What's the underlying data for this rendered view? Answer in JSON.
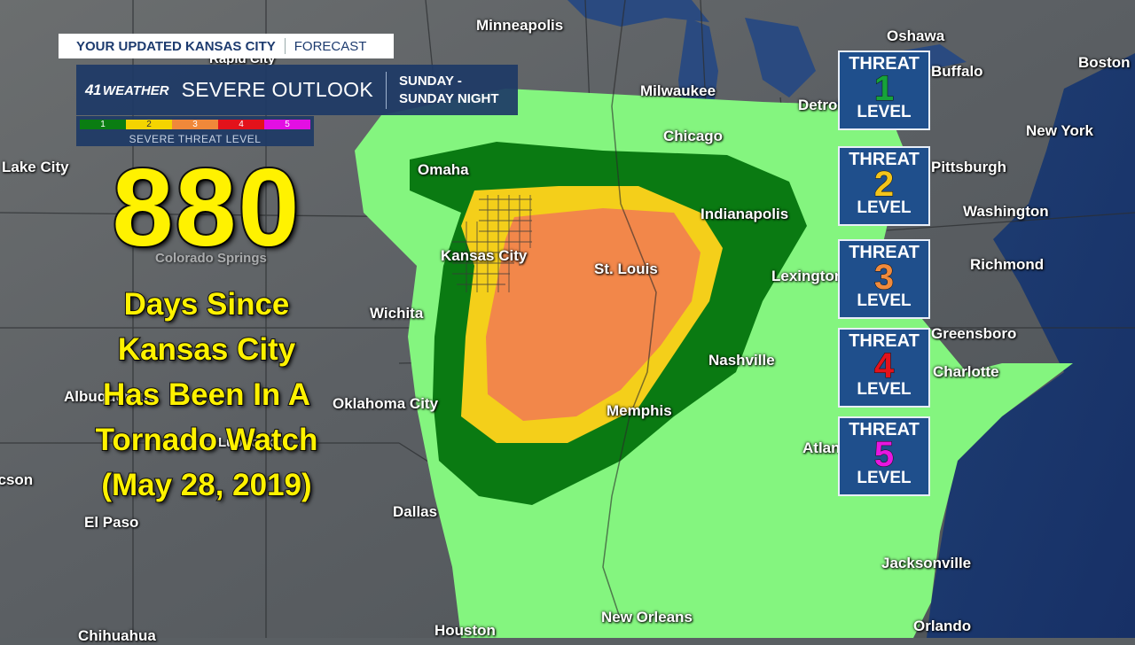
{
  "banner": {
    "left": "YOUR UPDATED KANSAS CITY",
    "right": "FORECAST"
  },
  "outlook": {
    "logo_number": "41",
    "logo_word": "WEATHER",
    "title": "SEVERE OUTLOOK",
    "time_line1": "SUNDAY -",
    "time_line2": "SUNDAY NIGHT"
  },
  "scale": {
    "levels": [
      "1",
      "2",
      "3",
      "4",
      "5"
    ],
    "colors": [
      "#0a7d12",
      "#f4d400",
      "#f0883a",
      "#e3121b",
      "#e30fe3"
    ],
    "caption": "SEVERE THREAT LEVEL"
  },
  "headline": {
    "number": "880",
    "lines": [
      "Days Since",
      "Kansas City",
      "Has Been In A",
      "Tornado Watch",
      "(May 28, 2019)"
    ]
  },
  "threats": [
    {
      "word": "THREAT",
      "level": "1",
      "label": "LEVEL",
      "color": "#16a33a"
    },
    {
      "word": "THREAT",
      "level": "2",
      "label": "LEVEL",
      "color": "#f4c41a"
    },
    {
      "word": "THREAT",
      "level": "3",
      "label": "LEVEL",
      "color": "#f08a3c"
    },
    {
      "word": "THREAT",
      "level": "4",
      "label": "LEVEL",
      "color": "#e3121b"
    },
    {
      "word": "THREAT",
      "level": "5",
      "label": "LEVEL",
      "color": "#e816e0"
    }
  ],
  "cities": [
    "Minneapolis",
    "Rapid City",
    "Oshawa",
    "Boston",
    "Milwaukee",
    "Detroit",
    "Buffalo",
    "Chicago",
    "New York",
    "Lake City",
    "Omaha",
    "Pittsburgh",
    "Indianapolis",
    "Washington",
    "Kansas City",
    "St. Louis",
    "Richmond",
    "Lexington",
    "Wichita",
    "Greensboro",
    "Nashville",
    "Albuquerque",
    "Charlotte",
    "Oklahoma City",
    "Memphis",
    "Atlanta",
    "Lubbock",
    "Tucson",
    "Dallas",
    "El Paso",
    "Jacksonville",
    "New Orleans",
    "Houston",
    "Chihuahua",
    "Orlando",
    "Colorado Springs"
  ],
  "colors": {
    "level1_marginal": "#84f57f",
    "level2_slight": "#0a7a12",
    "level3_enhanced": "#f4cf1a",
    "level4_moderate": "#f2874a",
    "panel_blue": "#1e3a66"
  }
}
